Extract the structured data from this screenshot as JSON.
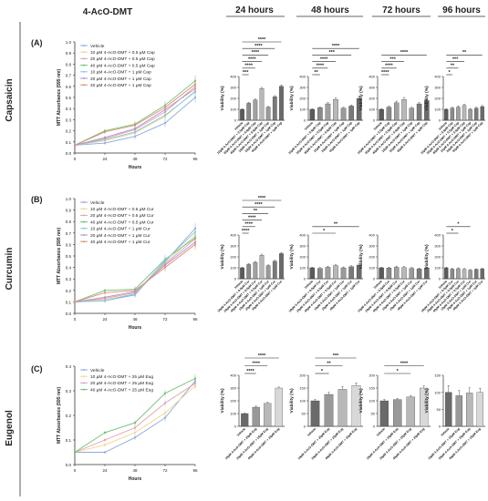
{
  "figure": {
    "title": "4-AcO-DMT",
    "time_headers": [
      "24 hours",
      "48 hours",
      "72 hours",
      "96 hours"
    ],
    "row_labels": [
      "Capsaicin",
      "Curcumin",
      "Eugenol"
    ],
    "panel_labels": [
      "(A)",
      "(B)",
      "(C)"
    ],
    "line_y_label": "MTT Absorbance (595 nm)",
    "line_x_label": "Hours",
    "bar_y_label": "Viability (%)",
    "line_x_ticks": [
      "0",
      "24",
      "48",
      "72",
      "96"
    ],
    "line_y_ticks_ab": [
      "0.0",
      "0.1",
      "0.2",
      "0.3",
      "0.4",
      "0.5",
      "0.6",
      "0.7",
      "0.8",
      "0.9",
      "1.0"
    ],
    "line_y_ticks_c": [
      "0.0",
      "0.1",
      "0.2",
      "0.3",
      "0.4"
    ],
    "bar_y_ticks_ab": [
      "0",
      "100",
      "200",
      "300",
      "400"
    ],
    "bar_y_ticks_c": [
      "0",
      "100",
      "200",
      "300",
      "400"
    ],
    "bar_y_ticks_c4": [
      "0",
      "50",
      "100",
      "150"
    ],
    "sig_label": "****",
    "sig_labels": {
      "one": "*",
      "two": "**",
      "three": "***",
      "four": "****"
    }
  },
  "chart_data": [
    {
      "id": "A-line",
      "type": "line",
      "x": [
        0,
        24,
        48,
        72,
        96
      ],
      "ylim": [
        0,
        1
      ],
      "series": [
        {
          "name": "Vehicle",
          "color": "#8fa8e0",
          "values": [
            0.07,
            0.09,
            0.15,
            0.27,
            0.5
          ]
        },
        {
          "name": "10 µM 4-AcO-DMT + 0.5 µM Cap",
          "color": "#f2d48f",
          "values": [
            0.07,
            0.11,
            0.18,
            0.33,
            0.56
          ]
        },
        {
          "name": "20 µM 4-AcO-DMT + 0.5 µM Cap",
          "color": "#e0a0b0",
          "values": [
            0.07,
            0.13,
            0.21,
            0.37,
            0.6
          ]
        },
        {
          "name": "40 µM 4-AcO-DMT + 0.5 µM Cap",
          "color": "#6fbf73",
          "values": [
            0.07,
            0.2,
            0.26,
            0.43,
            0.65
          ]
        },
        {
          "name": "10 µM 4-AcO-DMT + 1 µM Cap",
          "color": "#7fc9d9",
          "values": [
            0.07,
            0.12,
            0.19,
            0.34,
            0.55
          ]
        },
        {
          "name": "20 µM 4-AcO-DMT + 1 µM Cap",
          "color": "#b48fd0",
          "values": [
            0.07,
            0.14,
            0.22,
            0.39,
            0.58
          ]
        },
        {
          "name": "40 µM 4-AcO-DMT + 1 µM Cap",
          "color": "#d99070",
          "values": [
            0.07,
            0.19,
            0.25,
            0.41,
            0.62
          ]
        }
      ]
    },
    {
      "id": "B-line",
      "type": "line",
      "x": [
        0,
        24,
        48,
        72,
        96
      ],
      "ylim": [
        0,
        1
      ],
      "series": [
        {
          "name": "Vehicle",
          "color": "#8fa8e0",
          "values": [
            0.1,
            0.11,
            0.16,
            0.45,
            0.74
          ]
        },
        {
          "name": "10 µM 4-AcO-DMT + 0.5 µM Cur",
          "color": "#f2d48f",
          "values": [
            0.1,
            0.12,
            0.17,
            0.44,
            0.68
          ]
        },
        {
          "name": "20 µM 4-AcO-DMT + 0.5 µM Cur",
          "color": "#e0a0b0",
          "values": [
            0.1,
            0.13,
            0.18,
            0.43,
            0.65
          ]
        },
        {
          "name": "40 µM 4-AcO-DMT + 0.5 µM Cur",
          "color": "#6fbf73",
          "values": [
            0.1,
            0.2,
            0.21,
            0.47,
            0.66
          ]
        },
        {
          "name": "10 µM 4-AcO-DMT + 1 µM Cur",
          "color": "#7fc9d9",
          "values": [
            0.1,
            0.11,
            0.17,
            0.46,
            0.71
          ]
        },
        {
          "name": "20 µM 4-AcO-DMT + 1 µM Cur",
          "color": "#b48fd0",
          "values": [
            0.1,
            0.14,
            0.19,
            0.42,
            0.62
          ]
        },
        {
          "name": "40 µM 4-AcO-DMT + 1 µM Cur",
          "color": "#d99070",
          "values": [
            0.1,
            0.18,
            0.2,
            0.4,
            0.6
          ]
        }
      ]
    },
    {
      "id": "C-line",
      "type": "line",
      "x": [
        0,
        24,
        48,
        72,
        96
      ],
      "ylim": [
        0,
        0.4
      ],
      "series": [
        {
          "name": "Vehicle",
          "color": "#8fa8e0",
          "values": [
            0.05,
            0.05,
            0.11,
            0.19,
            0.34
          ]
        },
        {
          "name": "10 µM 4-AcO-DMT + 25 µM Eug",
          "color": "#f2d48f",
          "values": [
            0.05,
            0.08,
            0.13,
            0.21,
            0.32
          ]
        },
        {
          "name": "20 µM 4-AcO-DMT + 25 µM Eug",
          "color": "#e0a0b0",
          "values": [
            0.05,
            0.1,
            0.15,
            0.25,
            0.33
          ]
        },
        {
          "name": "40 µM 4-AcO-DMT + 25 µM Eug",
          "color": "#6fbf73",
          "values": [
            0.05,
            0.13,
            0.17,
            0.29,
            0.35
          ]
        }
      ]
    },
    {
      "id": "A-bars",
      "type": "bar",
      "ylim": [
        0,
        400
      ],
      "categories": [
        "Vehicle",
        "10µM 4-AcO-DMT + 0.5µM Cap",
        "20µM 4-AcO-DMT + 0.5µM Cap",
        "40µM 4-AcO-DMT + 0.5µM Cap",
        "10µM 4-AcO-DMT + 1µM Cap",
        "20µM 4-AcO-DMT + 1µM Cap",
        "40µM 4-AcO-DMT + 1µM Cap"
      ],
      "panels": [
        {
          "time": "24 hours",
          "values": [
            100,
            155,
            185,
            290,
            120,
            215,
            310
          ],
          "errors": [
            4,
            8,
            8,
            10,
            6,
            10,
            12
          ],
          "brackets": [
            [
              "***",
              0,
              1
            ],
            [
              "****",
              0,
              2
            ],
            [
              "****",
              0,
              3
            ],
            [
              "****",
              0,
              4
            ],
            [
              "****",
              0,
              5
            ],
            [
              "****",
              0,
              6
            ]
          ]
        },
        {
          "time": "48 hours",
          "values": [
            100,
            115,
            150,
            190,
            110,
            130,
            200
          ],
          "errors": [
            5,
            8,
            12,
            15,
            8,
            10,
            20
          ],
          "brackets": [
            [
              "**",
              0,
              1
            ],
            [
              "****",
              0,
              2
            ],
            [
              "****",
              0,
              3
            ],
            [
              "***",
              0,
              5
            ],
            [
              "****",
              0,
              6
            ]
          ]
        },
        {
          "time": "72 hours",
          "values": [
            100,
            120,
            160,
            190,
            110,
            150,
            180
          ],
          "errors": [
            6,
            10,
            15,
            18,
            8,
            12,
            15
          ],
          "brackets": [
            [
              "****",
              0,
              1
            ],
            [
              "****",
              0,
              2
            ],
            [
              "***",
              0,
              3
            ],
            [
              "****",
              0,
              6
            ]
          ]
        },
        {
          "time": "96 hours",
          "values": [
            100,
            110,
            120,
            135,
            100,
            110,
            125
          ],
          "errors": [
            5,
            8,
            10,
            12,
            8,
            8,
            10
          ],
          "brackets": [
            [
              "*",
              0,
              1
            ],
            [
              "**",
              0,
              2
            ],
            [
              "***",
              0,
              3
            ],
            [
              "**",
              0,
              6
            ]
          ]
        }
      ]
    },
    {
      "id": "B-bars",
      "type": "bar",
      "ylim": [
        0,
        400
      ],
      "categories": [
        "Vehicle",
        "10µM 4-AcO-DMT + 0.5µM Cur",
        "20µM 4-AcO-DMT + 0.5µM Cur",
        "40µM 4-AcO-DMT + 0.5µM Cur",
        "10µM 4-AcO-DMT + 1µM Cur",
        "20µM 4-AcO-DMT + 1µM Cur",
        "40µM 4-AcO-DMT + 1µM Cur"
      ],
      "panels": [
        {
          "time": "24 hours",
          "values": [
            100,
            130,
            150,
            215,
            120,
            160,
            230
          ],
          "errors": [
            5,
            8,
            8,
            10,
            6,
            8,
            10
          ],
          "brackets": [
            [
              "****",
              0,
              1
            ],
            [
              "****",
              0,
              2
            ],
            [
              "****",
              0,
              3
            ],
            [
              "**",
              0,
              4
            ],
            [
              "****",
              0,
              5
            ],
            [
              "****",
              0,
              6
            ]
          ]
        },
        {
          "time": "48 hours",
          "values": [
            100,
            95,
            105,
            120,
            100,
            110,
            125
          ],
          "errors": [
            5,
            8,
            10,
            12,
            8,
            10,
            12
          ],
          "brackets": [
            [
              "*",
              0,
              3
            ],
            [
              "**",
              0,
              6
            ]
          ]
        },
        {
          "time": "72 hours",
          "values": [
            100,
            98,
            105,
            102,
            95,
            90,
            100
          ],
          "errors": [
            6,
            8,
            10,
            10,
            8,
            8,
            8
          ],
          "brackets": []
        },
        {
          "time": "96 hours",
          "values": [
            100,
            88,
            92,
            85,
            78,
            85,
            90
          ],
          "errors": [
            5,
            6,
            8,
            8,
            6,
            6,
            8
          ],
          "brackets": [
            [
              "*",
              0,
              2
            ],
            [
              "*",
              0,
              4
            ]
          ]
        }
      ]
    },
    {
      "id": "C-bars",
      "type": "bar",
      "categories": [
        "Vehicle",
        "10µM 4-AcO-DMT + 25µM Eug",
        "20µM 4-AcO-DMT + 25µM Eug",
        "40µM 4-AcO-DMT + 25µM Eug"
      ],
      "panels": [
        {
          "time": "24 hours",
          "ylim": [
            0,
            400
          ],
          "values": [
            100,
            150,
            180,
            300
          ],
          "errors": [
            3,
            8,
            8,
            8
          ],
          "brackets": [
            [
              "****",
              0,
              1
            ],
            [
              "****",
              0,
              2
            ],
            [
              "****",
              0,
              3
            ]
          ]
        },
        {
          "time": "48 hours",
          "ylim": [
            0,
            200
          ],
          "values": [
            100,
            125,
            145,
            160
          ],
          "errors": [
            5,
            8,
            10,
            10
          ],
          "brackets": [
            [
              "*",
              0,
              1
            ],
            [
              "**",
              0,
              2
            ],
            [
              "***",
              0,
              3
            ]
          ]
        },
        {
          "time": "72 hours",
          "ylim": [
            0,
            200
          ],
          "values": [
            100,
            105,
            115,
            150
          ],
          "errors": [
            5,
            5,
            6,
            8
          ],
          "brackets": [
            [
              "*",
              0,
              2
            ],
            [
              "****",
              0,
              3
            ]
          ]
        },
        {
          "time": "96 hours",
          "ylim": [
            0,
            150
          ],
          "values": [
            100,
            90,
            98,
            100
          ],
          "errors": [
            20,
            15,
            15,
            12
          ],
          "brackets": []
        }
      ]
    }
  ]
}
